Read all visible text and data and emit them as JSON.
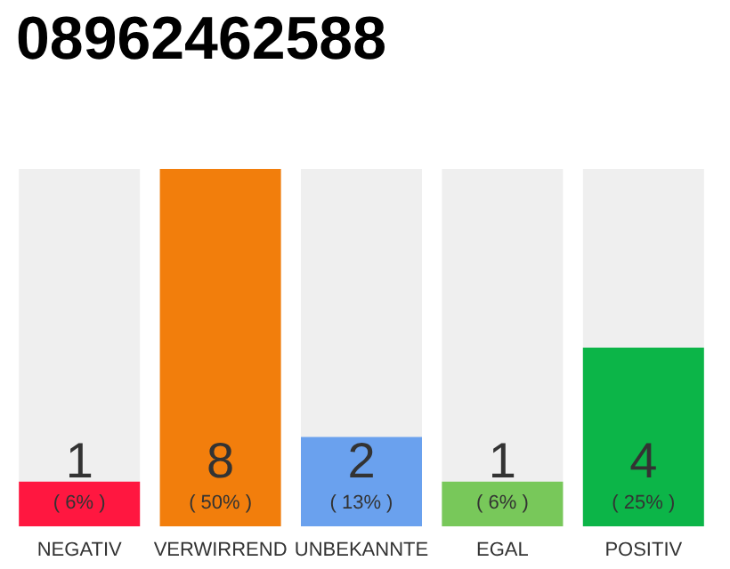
{
  "chart_data": {
    "type": "bar",
    "title": "08962462588",
    "categories": [
      "NEGATIV",
      "VERWIRREND",
      "UNBEKANNTE",
      "EGAL",
      "POSITIV"
    ],
    "values": [
      1,
      8,
      2,
      1,
      4
    ],
    "colors": [
      "#ff1740",
      "#f27e0c",
      "#6aa1ee",
      "#78c85a",
      "#0cb548"
    ],
    "data_labels": true,
    "annotations": [
      "( 6% )",
      "( 50% )",
      "( 13% )",
      "( 6% )",
      "( 25% )"
    ]
  }
}
